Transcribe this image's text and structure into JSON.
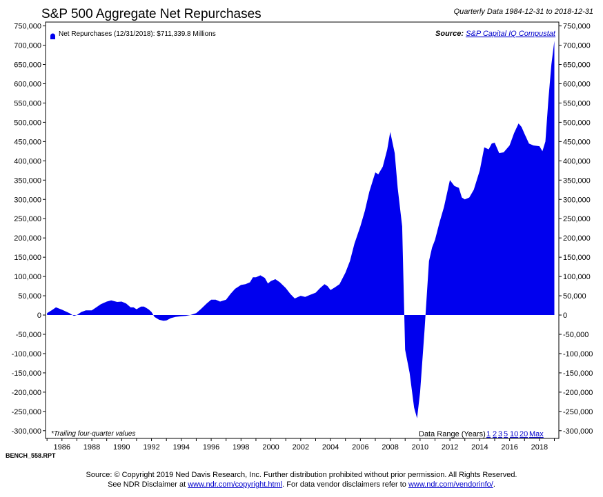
{
  "header": {
    "title": "S&P 500 Aggregate Net Repurchases",
    "subtitle": "Quarterly Data 1984-12-31 to 2018-12-31"
  },
  "legend": {
    "label": "Net Repurchases (12/31/2018): $711,339.8 Millions",
    "color": "#0000ee"
  },
  "source": {
    "label": "Source:",
    "link": "S&P Capital IQ Compustat"
  },
  "footnote": "*Trailing four-quarter values",
  "data_range": {
    "label": "Data Range (Years)",
    "options": [
      "1",
      "2",
      "3",
      "5",
      "10",
      "20",
      "Max"
    ]
  },
  "report_id": "BENCH_558.RPT",
  "footer": {
    "line1": "Source: © Copyright 2019 Ned Davis Research, Inc. Further distribution prohibited without prior permission. All Rights Reserved.",
    "line2_prefix": "See NDR Disclaimer at",
    "link1": "www.ndr.com/copyright.html",
    "line2_middle": ". For data vendor disclaimers refer to",
    "link2": "www.ndr.com/vendorinfo/",
    "line2_suffix": "."
  },
  "chart_data": {
    "type": "area",
    "title": "S&P 500 Aggregate Net Repurchases",
    "subtitle": "Quarterly Data 1984-12-31 to 2018-12-31",
    "xlabel": "",
    "ylabel": "",
    "xlim": [
      1984.9,
      2019.3
    ],
    "ylim": [
      -320000,
      760000
    ],
    "x_ticks": [
      1986,
      1988,
      1990,
      1992,
      1994,
      1996,
      1998,
      2000,
      2002,
      2004,
      2006,
      2008,
      2010,
      2012,
      2014,
      2016,
      2018
    ],
    "x_tick_labels": [
      "1986",
      "1988",
      "1990",
      "1992",
      "1994",
      "1996",
      "1998",
      "2000",
      "2002",
      "2004",
      "2006",
      "2008",
      "2010",
      "2012",
      "2014",
      "2016",
      "2018"
    ],
    "y_ticks": [
      -300000,
      -250000,
      -200000,
      -150000,
      -100000,
      -50000,
      0,
      50000,
      100000,
      150000,
      200000,
      250000,
      300000,
      350000,
      400000,
      450000,
      500000,
      550000,
      600000,
      650000,
      700000,
      750000
    ],
    "y_tick_labels": [
      "-300,000",
      "-250,000",
      "-200,000",
      "-150,000",
      "-100,000",
      "-50,000",
      "0",
      "50,000",
      "100,000",
      "150,000",
      "200,000",
      "250,000",
      "300,000",
      "350,000",
      "400,000",
      "450,000",
      "500,000",
      "550,000",
      "600,000",
      "650,000",
      "700,000",
      "750,000"
    ],
    "grid": false,
    "legend_position": "top-left",
    "series": [
      {
        "name": "Net Repurchases",
        "color": "#0000ee",
        "points": [
          [
            1985.0,
            5000
          ],
          [
            1985.3,
            12000
          ],
          [
            1985.6,
            20000
          ],
          [
            1986.0,
            14000
          ],
          [
            1986.5,
            5000
          ],
          [
            1986.8,
            -2000
          ],
          [
            1987.0,
            0
          ],
          [
            1987.3,
            8000
          ],
          [
            1987.6,
            12000
          ],
          [
            1988.0,
            12000
          ],
          [
            1988.3,
            20000
          ],
          [
            1988.6,
            28000
          ],
          [
            1989.0,
            35000
          ],
          [
            1989.3,
            38000
          ],
          [
            1989.7,
            34000
          ],
          [
            1990.0,
            35000
          ],
          [
            1990.3,
            30000
          ],
          [
            1990.6,
            20000
          ],
          [
            1990.8,
            20000
          ],
          [
            1991.0,
            15000
          ],
          [
            1991.3,
            22000
          ],
          [
            1991.5,
            22000
          ],
          [
            1991.8,
            15000
          ],
          [
            1992.0,
            8000
          ],
          [
            1992.2,
            -5000
          ],
          [
            1992.5,
            -12000
          ],
          [
            1992.8,
            -15000
          ],
          [
            1993.0,
            -14000
          ],
          [
            1993.3,
            -8000
          ],
          [
            1993.6,
            -5000
          ],
          [
            1994.0,
            -3000
          ],
          [
            1994.3,
            -2000
          ],
          [
            1994.6,
            0
          ],
          [
            1995.0,
            5000
          ],
          [
            1995.3,
            15000
          ],
          [
            1995.7,
            30000
          ],
          [
            1996.0,
            40000
          ],
          [
            1996.3,
            40000
          ],
          [
            1996.6,
            35000
          ],
          [
            1997.0,
            40000
          ],
          [
            1997.3,
            55000
          ],
          [
            1997.6,
            68000
          ],
          [
            1998.0,
            78000
          ],
          [
            1998.3,
            80000
          ],
          [
            1998.6,
            85000
          ],
          [
            1998.8,
            98000
          ],
          [
            1999.0,
            98000
          ],
          [
            1999.3,
            103000
          ],
          [
            1999.6,
            96000
          ],
          [
            1999.8,
            82000
          ],
          [
            2000.0,
            88000
          ],
          [
            2000.3,
            93000
          ],
          [
            2000.6,
            85000
          ],
          [
            2001.0,
            70000
          ],
          [
            2001.3,
            55000
          ],
          [
            2001.6,
            43000
          ],
          [
            2002.0,
            50000
          ],
          [
            2002.3,
            47000
          ],
          [
            2002.6,
            52000
          ],
          [
            2003.0,
            58000
          ],
          [
            2003.3,
            70000
          ],
          [
            2003.6,
            80000
          ],
          [
            2003.8,
            75000
          ],
          [
            2004.0,
            65000
          ],
          [
            2004.3,
            72000
          ],
          [
            2004.6,
            80000
          ],
          [
            2005.0,
            110000
          ],
          [
            2005.3,
            140000
          ],
          [
            2005.6,
            185000
          ],
          [
            2006.0,
            230000
          ],
          [
            2006.3,
            270000
          ],
          [
            2006.6,
            320000
          ],
          [
            2007.0,
            370000
          ],
          [
            2007.2,
            365000
          ],
          [
            2007.5,
            385000
          ],
          [
            2007.8,
            430000
          ],
          [
            2008.0,
            475000
          ],
          [
            2008.3,
            420000
          ],
          [
            2008.5,
            330000
          ],
          [
            2008.8,
            230000
          ],
          [
            2009.0,
            -90000
          ],
          [
            2009.3,
            -150000
          ],
          [
            2009.6,
            -240000
          ],
          [
            2009.8,
            -268000
          ],
          [
            2010.0,
            -200000
          ],
          [
            2010.3,
            -40000
          ],
          [
            2010.6,
            140000
          ],
          [
            2010.8,
            175000
          ],
          [
            2011.0,
            195000
          ],
          [
            2011.3,
            240000
          ],
          [
            2011.6,
            280000
          ],
          [
            2012.0,
            350000
          ],
          [
            2012.3,
            335000
          ],
          [
            2012.6,
            330000
          ],
          [
            2012.8,
            305000
          ],
          [
            2013.0,
            300000
          ],
          [
            2013.3,
            305000
          ],
          [
            2013.6,
            325000
          ],
          [
            2014.0,
            375000
          ],
          [
            2014.3,
            435000
          ],
          [
            2014.6,
            430000
          ],
          [
            2014.8,
            445000
          ],
          [
            2015.0,
            447000
          ],
          [
            2015.3,
            420000
          ],
          [
            2015.6,
            422000
          ],
          [
            2016.0,
            440000
          ],
          [
            2016.3,
            472000
          ],
          [
            2016.6,
            497000
          ],
          [
            2016.8,
            488000
          ],
          [
            2017.0,
            470000
          ],
          [
            2017.3,
            445000
          ],
          [
            2017.6,
            440000
          ],
          [
            2018.0,
            438000
          ],
          [
            2018.2,
            425000
          ],
          [
            2018.4,
            450000
          ],
          [
            2018.6,
            560000
          ],
          [
            2018.8,
            650000
          ],
          [
            2019.0,
            711340
          ]
        ]
      }
    ]
  }
}
